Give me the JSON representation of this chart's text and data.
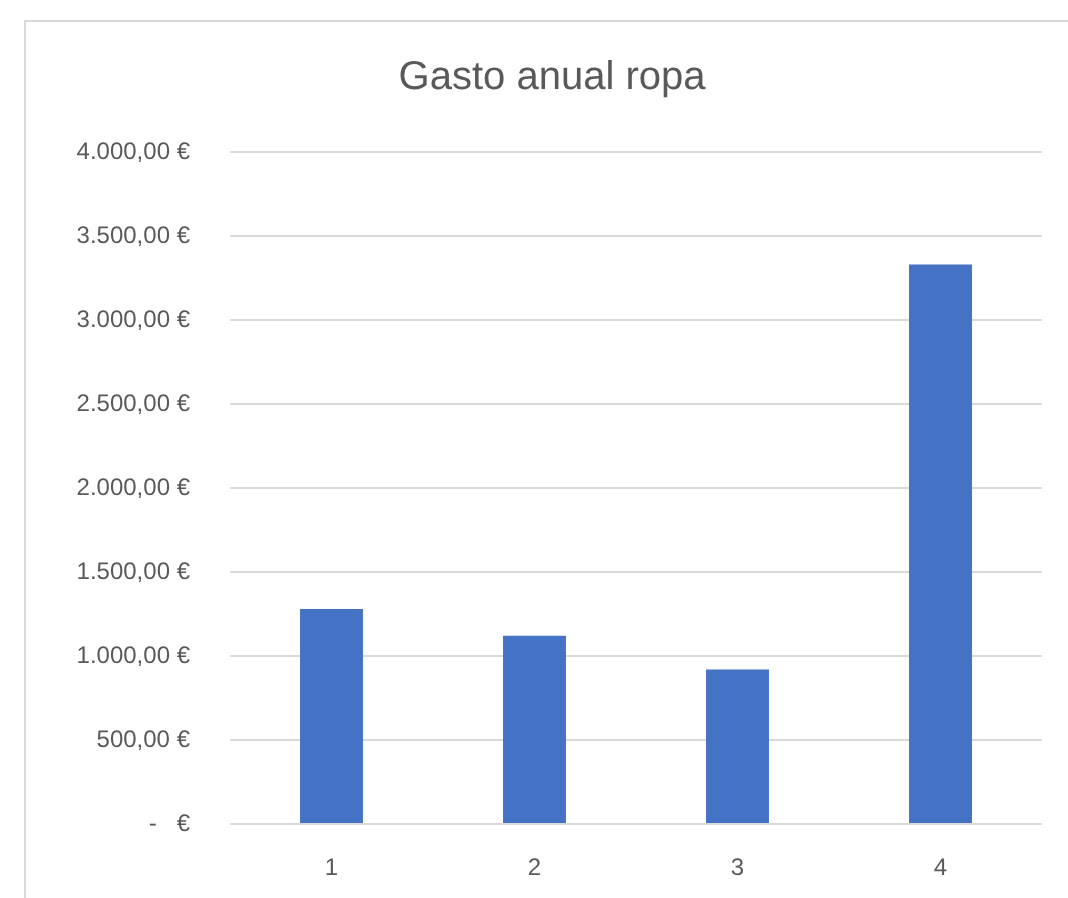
{
  "chart_data": {
    "type": "bar",
    "title": "Gasto anual ropa",
    "categories": [
      "1",
      "2",
      "3",
      "4"
    ],
    "values": [
      1280,
      1120,
      920,
      3330
    ],
    "color": "#4472c4",
    "ylim": [
      0,
      4000
    ],
    "yticks": [
      {
        "value": 0,
        "label": "-   €"
      },
      {
        "value": 500,
        "label": "500,00 €"
      },
      {
        "value": 1000,
        "label": "1.000,00 €"
      },
      {
        "value": 1500,
        "label": "1.500,00 €"
      },
      {
        "value": 2000,
        "label": "2.000,00 €"
      },
      {
        "value": 2500,
        "label": "2.500,00 €"
      },
      {
        "value": 3000,
        "label": "3.000,00 €"
      },
      {
        "value": 3500,
        "label": "3.500,00 €"
      },
      {
        "value": 4000,
        "label": "4.000,00 €"
      }
    ],
    "grid": "y"
  }
}
